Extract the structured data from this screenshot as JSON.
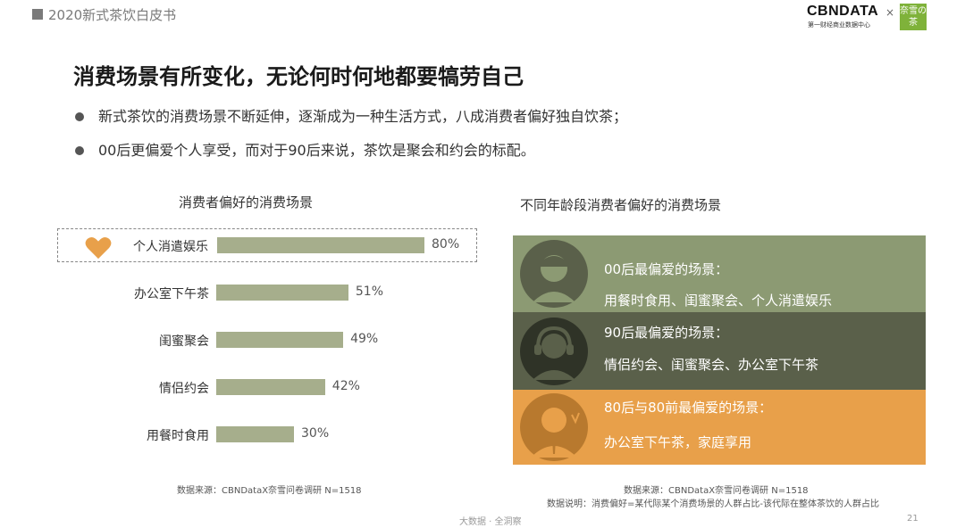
{
  "header": {
    "report_title": "2020新式茶饮白皮书"
  },
  "logo": {
    "brand": "CBNDATA",
    "tagline": "第一财经商业数据中心",
    "cross": "×",
    "partner": "奈雪の茶"
  },
  "main_title": "消费场景有所变化，无论何时何地都要犒劳自己",
  "bullets": [
    "新式茶饮的消费场景不断延伸，逐渐成为一种生活方式，八成消费者偏好独自饮茶；",
    "00后更偏爱个人享受，而对于90后来说，茶饮是聚会和约会的标配。"
  ],
  "left_chart": {
    "title": "消费者偏好的消费场景",
    "source": "数据来源：CBNDataX奈雪问卷调研 N=1518"
  },
  "chart_data": {
    "type": "bar",
    "orientation": "horizontal",
    "categories": [
      "个人消遣娱乐",
      "办公室下午茶",
      "闺蜜聚会",
      "情侣约会",
      "用餐时食用"
    ],
    "values": [
      80,
      51,
      49,
      42,
      30
    ],
    "value_labels": [
      "80%",
      "51%",
      "49%",
      "42%",
      "30%"
    ],
    "title": "消费者偏好的消费场景",
    "bar_color": "#a6ae8c",
    "highlight_index": 0,
    "xlim": [
      0,
      100
    ]
  },
  "right_chart": {
    "title": "不同年龄段消费者偏好的消费场景",
    "panels": [
      {
        "title": "00后最偏爱的场景：",
        "body": "用餐时食用、闺蜜聚会、个人消遣娱乐",
        "color": "#8c9a73",
        "icon": "person-with-cap-icon"
      },
      {
        "title": "90后最偏爱的场景：",
        "body": "情侣约会、闺蜜聚会、办公室下午茶",
        "color": "#5a604a",
        "icon": "person-with-headphones-icon"
      },
      {
        "title": "80后与80前最偏爱的场景：",
        "body": "办公室下午茶，家庭享用",
        "color": "#e8a04a",
        "icon": "businessman-icon"
      }
    ],
    "source": "数据来源：CBNDataX奈雪问卷调研 N=1518",
    "note": "数据说明：消费偏好=某代际某个消费场景的人群占比-该代际在整体茶饮的人群占比"
  },
  "footer": {
    "slogan": "大数据 · 全洞察",
    "page_number": "21"
  },
  "colors": {
    "heart": "#e8a04a",
    "bar": "#a6ae8c"
  }
}
